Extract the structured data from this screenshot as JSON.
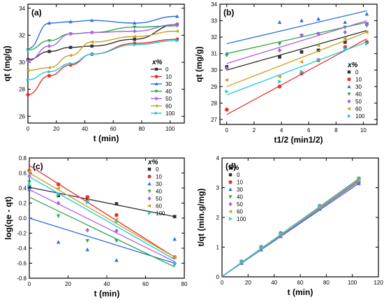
{
  "colors": {
    "0": "#303030",
    "10": "#e8302a",
    "30": "#2a6fe0",
    "40": "#2fa84a",
    "50": "#a860e8",
    "60": "#c8a020",
    "100": "#20c8d8"
  },
  "chart_data": [
    {
      "panel": "(a)",
      "type": "line",
      "xlabel": "t (min)",
      "ylabel": "qt (mg/g)",
      "xlim": [
        0,
        110
      ],
      "ylim": [
        25.5,
        34.3
      ],
      "xticks": [
        0,
        20,
        40,
        60,
        80,
        100
      ],
      "yticks": [
        26,
        28,
        30,
        32,
        34
      ],
      "legend_title": "x%",
      "legend_position": "right",
      "series": [
        {
          "name": "0",
          "marker": "square",
          "x": [
            0,
            15,
            30,
            45,
            75,
            105
          ],
          "y": [
            30.2,
            30.8,
            31.1,
            31.2,
            31.7,
            32.8
          ]
        },
        {
          "name": "10",
          "marker": "circle",
          "x": [
            0,
            15,
            30,
            45,
            75,
            105
          ],
          "y": [
            27.6,
            29.0,
            29.8,
            30.6,
            31.4,
            31.7
          ]
        },
        {
          "name": "30",
          "marker": "triangle-up",
          "x": [
            0,
            15,
            30,
            45,
            75,
            105
          ],
          "y": [
            31.0,
            32.9,
            33.0,
            33.1,
            32.9,
            33.4
          ]
        },
        {
          "name": "40",
          "marker": "triangle-down",
          "x": [
            0,
            15,
            30,
            45,
            75,
            105
          ],
          "y": [
            30.9,
            31.6,
            32.1,
            32.2,
            32.6,
            32.7
          ]
        },
        {
          "name": "50",
          "marker": "diamond",
          "x": [
            0,
            15,
            30,
            45,
            75,
            105
          ],
          "y": [
            30.1,
            31.2,
            32.1,
            32.2,
            32.3,
            32.8
          ]
        },
        {
          "name": "60",
          "marker": "triangle-left",
          "x": [
            0,
            15,
            30,
            45,
            75,
            105
          ],
          "y": [
            29.4,
            29.6,
            30.5,
            31.5,
            31.9,
            32.3
          ]
        },
        {
          "name": "100",
          "marker": "triangle-right",
          "x": [
            0,
            15,
            30,
            45,
            75,
            105
          ],
          "y": [
            28.7,
            29.3,
            29.9,
            30.6,
            31.3,
            31.6
          ]
        }
      ]
    },
    {
      "panel": "(b)",
      "type": "scatter",
      "xlabel": "t1/2 (min1/2)",
      "ylabel": "qt (mg/g)",
      "xlim": [
        -0.5,
        11
      ],
      "ylim": [
        26.7,
        34
      ],
      "xticks": [
        0,
        2,
        4,
        6,
        8,
        10
      ],
      "yticks": [
        27,
        28,
        29,
        30,
        31,
        32,
        33,
        34
      ],
      "legend_title": "x%",
      "legend_position": "bottom-right",
      "series": [
        {
          "name": "0",
          "marker": "square",
          "x": [
            0,
            3.87,
            5.48,
            6.71,
            8.66,
            10.25
          ],
          "y": [
            30.2,
            30.8,
            31.1,
            31.2,
            31.7,
            32.8
          ],
          "fit": [
            30.0,
            32.4
          ]
        },
        {
          "name": "10",
          "marker": "circle",
          "x": [
            0,
            3.87,
            5.48,
            6.71,
            8.66,
            10.25
          ],
          "y": [
            27.6,
            29.0,
            29.8,
            30.6,
            31.4,
            31.7
          ],
          "fit": [
            27.3,
            31.9
          ]
        },
        {
          "name": "30",
          "marker": "triangle-up",
          "x": [
            0,
            3.87,
            5.48,
            6.71,
            8.66,
            10.25
          ],
          "y": [
            31.0,
            32.9,
            33.0,
            33.1,
            32.9,
            33.4
          ],
          "fit": [
            31.6,
            33.6
          ]
        },
        {
          "name": "40",
          "marker": "triangle-down",
          "x": [
            0,
            3.87,
            5.48,
            6.71,
            8.66,
            10.25
          ],
          "y": [
            30.9,
            31.6,
            32.1,
            32.2,
            32.6,
            32.7
          ],
          "fit": [
            31.0,
            32.9
          ]
        },
        {
          "name": "50",
          "marker": "diamond",
          "x": [
            0,
            3.87,
            5.48,
            6.71,
            8.66,
            10.25
          ],
          "y": [
            30.1,
            31.2,
            32.1,
            32.2,
            32.3,
            32.8
          ],
          "fit": [
            30.4,
            33.0
          ]
        },
        {
          "name": "60",
          "marker": "triangle-left",
          "x": [
            0,
            3.87,
            5.48,
            6.71,
            8.66,
            10.25
          ],
          "y": [
            29.4,
            29.6,
            30.5,
            31.5,
            31.9,
            32.3
          ],
          "fit": [
            29.0,
            32.3
          ]
        },
        {
          "name": "100",
          "marker": "triangle-right",
          "x": [
            0,
            3.87,
            5.48,
            6.71,
            8.66,
            10.25
          ],
          "y": [
            28.7,
            29.3,
            29.9,
            30.6,
            31.3,
            31.6
          ],
          "fit": [
            28.5,
            31.7
          ]
        }
      ]
    },
    {
      "panel": "(c)",
      "type": "scatter",
      "xlabel": "t (min)",
      "ylabel": "log(qe - qt)",
      "xlim": [
        0,
        80
      ],
      "ylim": [
        -0.8,
        0.8
      ],
      "xticks": [
        0,
        20,
        40,
        60,
        80
      ],
      "yticks": [
        -0.8,
        -0.6,
        -0.4,
        -0.2,
        0.0,
        0.2,
        0.4,
        0.6,
        0.8
      ],
      "legend_title": "x%",
      "legend_position": "top-right",
      "series": [
        {
          "name": "0",
          "marker": "square",
          "x": [
            0,
            15,
            30,
            45,
            75
          ],
          "y": [
            0.41,
            0.3,
            0.23,
            0.19,
            0.02
          ],
          "fit": [
            0.41,
            0.02
          ]
        },
        {
          "name": "10",
          "marker": "circle",
          "x": [
            0,
            15,
            30,
            45,
            75
          ],
          "y": [
            0.63,
            0.45,
            0.28,
            0.04,
            -0.52
          ],
          "fit": [
            0.7,
            -0.52
          ]
        },
        {
          "name": "30",
          "marker": "triangle-up",
          "x": [
            0,
            15,
            30,
            45,
            75
          ],
          "y": [
            0.38,
            -0.32,
            -0.42,
            -0.56,
            -0.28
          ],
          "fit": [
            0.0,
            -0.6
          ]
        },
        {
          "name": "40",
          "marker": "triangle-down",
          "x": [
            0,
            15,
            30,
            45,
            75
          ],
          "y": [
            0.48,
            0.03,
            -0.3,
            -0.3,
            -0.62
          ],
          "fit": [
            0.28,
            -0.65
          ]
        },
        {
          "name": "50",
          "marker": "diamond",
          "x": [
            0,
            15,
            30,
            45,
            75
          ],
          "y": [
            0.56,
            0.2,
            -0.16,
            -0.17,
            -0.6
          ],
          "fit": [
            0.38,
            -0.58
          ]
        },
        {
          "name": "60",
          "marker": "triangle-left",
          "x": [
            0,
            15,
            30,
            45,
            75
          ],
          "y": [
            0.62,
            0.4,
            0.23,
            -0.02,
            -0.52
          ],
          "fit": [
            0.6,
            -0.52
          ]
        },
        {
          "name": "100",
          "marker": "triangle-right",
          "x": [
            0,
            15,
            30,
            45,
            75
          ],
          "y": [
            0.44,
            0.31,
            0.21,
            -0.05,
            -0.6
          ],
          "fit": [
            0.55,
            -0.55
          ]
        }
      ]
    },
    {
      "panel": "(d)",
      "type": "scatter",
      "xlabel": "t (min)",
      "ylabel": "t/qt (min.g/mg)",
      "xlim": [
        0,
        120
      ],
      "ylim": [
        0,
        4
      ],
      "xticks": [
        0,
        20,
        40,
        60,
        80,
        100,
        120
      ],
      "yticks": [
        0,
        1,
        2,
        3,
        4
      ],
      "legend_title": "x%",
      "legend_position": "top-left",
      "series": [
        {
          "name": "0",
          "marker": "square",
          "x": [
            15,
            30,
            45,
            75,
            105
          ],
          "y": [
            0.487,
            0.965,
            1.442,
            2.366,
            3.2
          ],
          "fit": [
            0.012,
            3.22
          ]
        },
        {
          "name": "10",
          "marker": "circle",
          "x": [
            15,
            30,
            45,
            75,
            105
          ],
          "y": [
            0.517,
            1.007,
            1.471,
            2.389,
            3.31
          ],
          "fit": [
            0.015,
            3.3
          ]
        },
        {
          "name": "30",
          "marker": "triangle-up",
          "x": [
            15,
            30,
            45,
            75,
            105
          ],
          "y": [
            0.456,
            0.909,
            1.36,
            2.28,
            3.14
          ],
          "fit": [
            0.01,
            3.15
          ]
        },
        {
          "name": "40",
          "marker": "triangle-down",
          "x": [
            15,
            30,
            45,
            75,
            105
          ],
          "y": [
            0.475,
            0.935,
            1.398,
            2.301,
            3.21
          ],
          "fit": [
            0.011,
            3.21
          ]
        },
        {
          "name": "50",
          "marker": "diamond",
          "x": [
            15,
            30,
            45,
            75,
            105
          ],
          "y": [
            0.481,
            0.935,
            1.398,
            2.322,
            3.2
          ],
          "fit": [
            0.011,
            3.21
          ]
        },
        {
          "name": "60",
          "marker": "triangle-left",
          "x": [
            15,
            30,
            45,
            75,
            105
          ],
          "y": [
            0.507,
            0.984,
            1.429,
            2.351,
            3.25
          ],
          "fit": [
            0.013,
            3.26
          ]
        },
        {
          "name": "100",
          "marker": "triangle-right",
          "x": [
            15,
            30,
            45,
            75,
            105
          ],
          "y": [
            0.512,
            1.003,
            1.471,
            2.396,
            3.32
          ],
          "fit": [
            0.014,
            3.31
          ]
        }
      ]
    }
  ]
}
